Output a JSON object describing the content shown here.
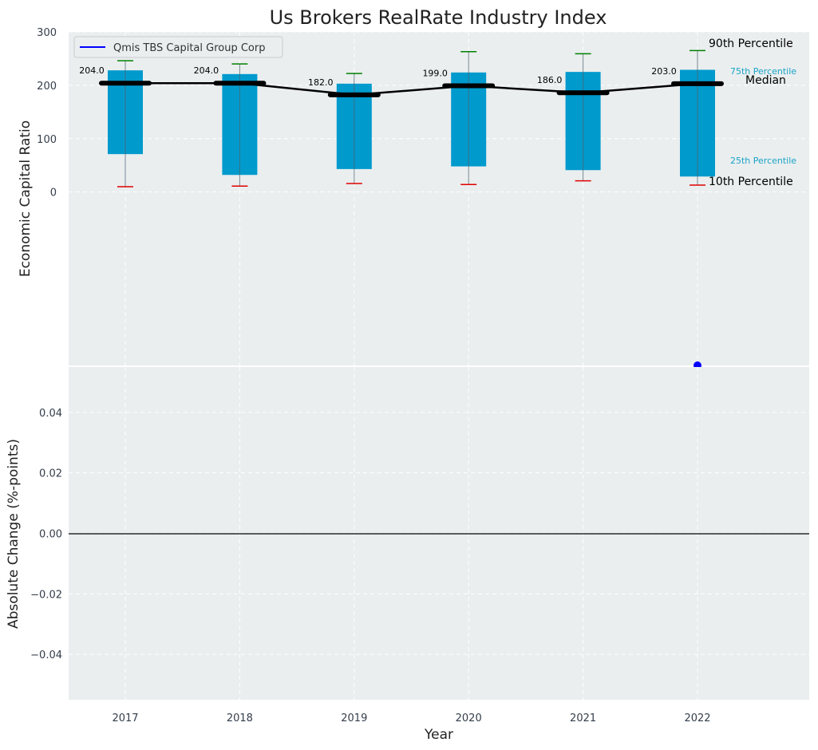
{
  "chart_data": [
    {
      "type": "box",
      "title": "Us Brokers RealRate Industry Index",
      "xlabel": "",
      "ylabel": "Economic Capital Ratio",
      "categories": [
        "2017",
        "2018",
        "2019",
        "2020",
        "2021",
        "2022"
      ],
      "ylim": [
        -325,
        300
      ],
      "yticks": [
        0,
        100,
        200,
        300
      ],
      "grid": true,
      "legend": {
        "position": "top-left",
        "entries": [
          "Qmis TBS Capital Group Corp"
        ]
      },
      "box_color": "#009ACD",
      "median_line_color": "#000000",
      "p90_cap_color": "#008000",
      "p10_cap_color": "#E00000",
      "company_color": "#0000FF",
      "series": {
        "p10": [
          10,
          11,
          16,
          14,
          21,
          13
        ],
        "p25": [
          71,
          32,
          43,
          48,
          41,
          29
        ],
        "median": [
          204,
          204,
          182,
          199,
          186,
          203
        ],
        "p75": [
          228,
          221,
          203,
          224,
          225,
          229
        ],
        "p90": [
          246,
          240,
          222,
          263,
          259,
          265
        ],
        "median_labels": [
          "204.0",
          "204.0",
          "182.0",
          "199.0",
          "186.0",
          "203.0"
        ],
        "company": {
          "name": "Qmis TBS Capital Group Corp",
          "year": "2022",
          "value": -325
        }
      },
      "annotations": {
        "p90": "90th Percentile",
        "p75": "75th Percentile",
        "median": "Median",
        "p25": "25th Percentile",
        "p10": "10th Percentile"
      }
    },
    {
      "type": "line",
      "xlabel": "Year",
      "ylabel": "Absolute Change (%-points)",
      "categories": [
        "2017",
        "2018",
        "2019",
        "2020",
        "2021",
        "2022"
      ],
      "ylim": [
        -0.055,
        0.055
      ],
      "yticks": [
        "−0.04",
        "−0.02",
        "0.00",
        "0.02",
        "0.04"
      ],
      "ytick_values": [
        -0.04,
        -0.02,
        0,
        0.02,
        0.04
      ],
      "grid": true,
      "zero_line": true
    }
  ]
}
